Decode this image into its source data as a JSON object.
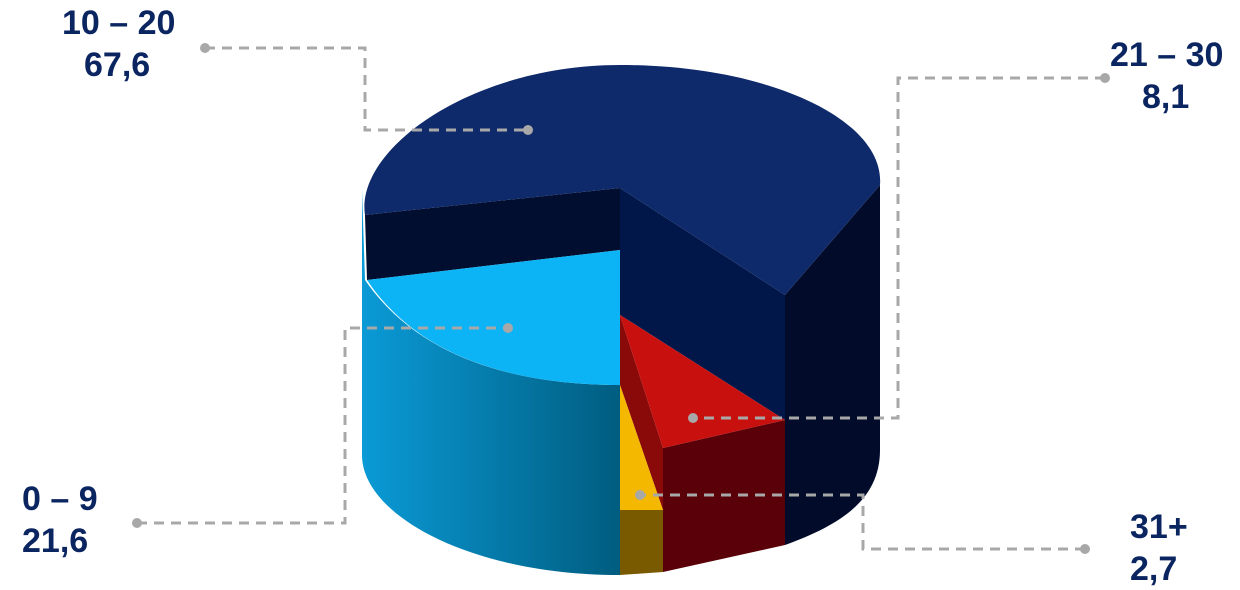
{
  "chart_data": {
    "type": "pie",
    "title": "",
    "style": "3d-cylinder",
    "slices": [
      {
        "label": "10 – 20",
        "value": 67.6,
        "display": "67,6",
        "color": "#0f2a6b"
      },
      {
        "label": "21 – 30",
        "value": 8.1,
        "display": "8,1",
        "color": "#c8100f"
      },
      {
        "label": "31+",
        "value": 2.7,
        "display": "2,7",
        "color": "#f5b800"
      },
      {
        "label": "0 – 9",
        "value": 21.6,
        "display": "21,6",
        "color": "#0db4f5"
      }
    ]
  }
}
